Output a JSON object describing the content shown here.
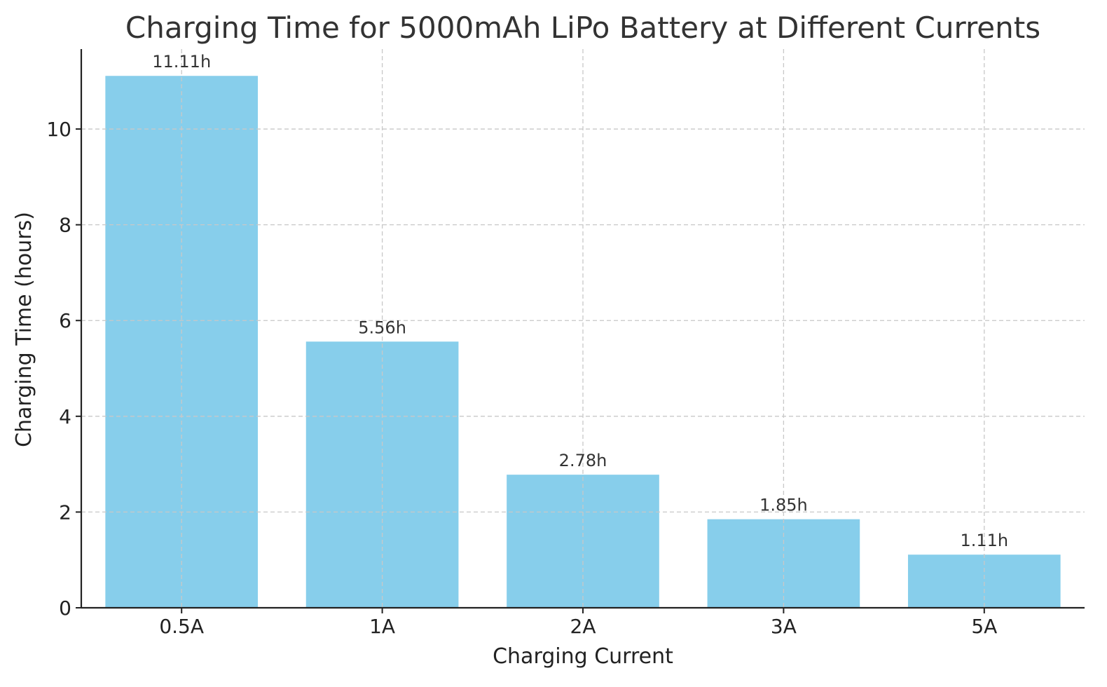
{
  "chart_data": {
    "type": "bar",
    "title": "Charging Time for 5000mAh LiPo Battery at Different Currents",
    "xlabel": "Charging Current",
    "ylabel": "Charging Time (hours)",
    "categories": [
      "0.5A",
      "1A",
      "2A",
      "3A",
      "5A"
    ],
    "values": [
      11.11,
      5.56,
      2.78,
      1.85,
      1.11
    ],
    "data_labels": [
      "11.11h",
      "5.56h",
      "2.78h",
      "1.85h",
      "1.11h"
    ],
    "ylim": [
      0,
      11.67
    ],
    "yticks": [
      0,
      2,
      4,
      6,
      8,
      10
    ],
    "grid": true,
    "bar_color": "#87ceeb"
  }
}
